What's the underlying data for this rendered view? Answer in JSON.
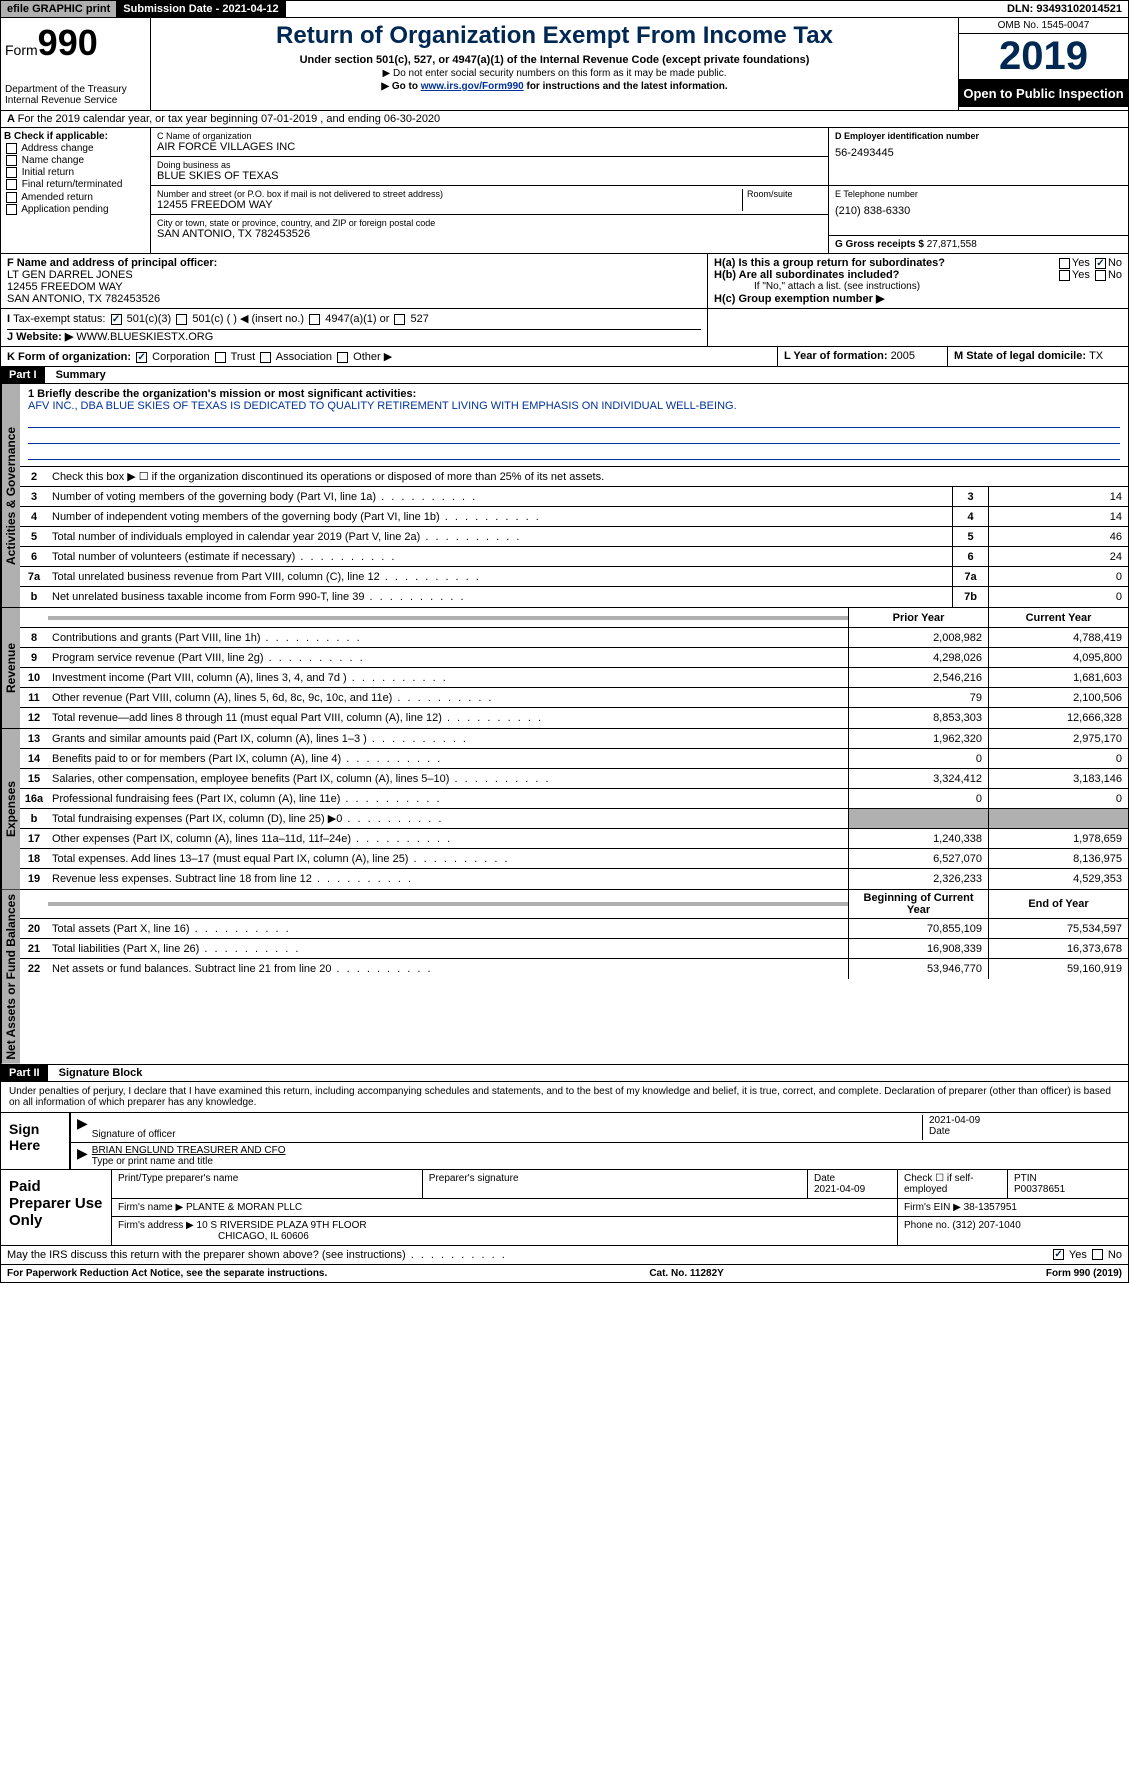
{
  "topbar": {
    "efile": "efile GRAPHIC print",
    "submission_label": "Submission Date - ",
    "submission_date": "2021-04-12",
    "dln_label": "DLN: ",
    "dln": "93493102014521"
  },
  "header": {
    "form_prefix": "Form",
    "form_number": "990",
    "dept": "Department of the Treasury\nInternal Revenue Service",
    "title": "Return of Organization Exempt From Income Tax",
    "subtitle": "Under section 501(c), 527, or 4947(a)(1) of the Internal Revenue Code (except private foundations)",
    "note1": "▶ Do not enter social security numbers on this form as it may be made public.",
    "note2_pre": "▶ Go to ",
    "note2_link": "www.irs.gov/Form990",
    "note2_post": " for instructions and the latest information.",
    "omb": "OMB No. 1545-0047",
    "year": "2019",
    "open_public": "Open to Public Inspection"
  },
  "row_a": "For the 2019 calendar year, or tax year beginning 07-01-2019   , and ending 06-30-2020",
  "box_b": {
    "title": "B Check if applicable:",
    "opts": [
      "Address change",
      "Name change",
      "Initial return",
      "Final return/terminated",
      "Amended return",
      "Application pending"
    ]
  },
  "box_c": {
    "name_lbl": "C Name of organization",
    "name": "AIR FORCE VILLAGES INC",
    "dba_lbl": "Doing business as",
    "dba": "BLUE SKIES OF TEXAS",
    "addr_lbl": "Number and street (or P.O. box if mail is not delivered to street address)",
    "room_lbl": "Room/suite",
    "addr": "12455 FREEDOM WAY",
    "city_lbl": "City or town, state or province, country, and ZIP or foreign postal code",
    "city": "SAN ANTONIO, TX  782453526"
  },
  "box_d": {
    "lbl": "D Employer identification number",
    "val": "56-2493445"
  },
  "box_e": {
    "lbl": "E Telephone number",
    "val": "(210) 838-6330"
  },
  "box_g": {
    "lbl": "G Gross receipts $ ",
    "val": "27,871,558"
  },
  "box_f": {
    "lbl": "F  Name and address of principal officer:",
    "name": "LT GEN DARREL JONES",
    "addr1": "12455 FREEDOM WAY",
    "addr2": "SAN ANTONIO, TX  782453526"
  },
  "box_h": {
    "a": "H(a)  Is this a group return for subordinates?",
    "b": "H(b)  Are all subordinates included?",
    "b_note": "If \"No,\" attach a list. (see instructions)",
    "c": "H(c)  Group exemption number ▶"
  },
  "tax_status": {
    "lbl": "Tax-exempt status:",
    "opt1": "501(c)(3)",
    "opt2": "501(c) (  ) ◀ (insert no.)",
    "opt3": "4947(a)(1) or",
    "opt4": "527"
  },
  "website": {
    "lbl": "J    Website: ▶",
    "val": "WWW.BLUESKIESTX.ORG"
  },
  "box_k": {
    "lbl": "K Form of organization:",
    "opts": [
      "Corporation",
      "Trust",
      "Association",
      "Other ▶"
    ]
  },
  "box_l": {
    "lbl": "L Year of formation: ",
    "val": "2005"
  },
  "box_m": {
    "lbl": "M State of legal domicile: ",
    "val": "TX"
  },
  "part1": {
    "title": "Part I",
    "name": "Summary",
    "l1_lbl": "1  Briefly describe the organization's mission or most significant activities:",
    "l1_val": "AFV INC., DBA BLUE SKIES OF TEXAS IS DEDICATED TO QUALITY RETIREMENT LIVING WITH EMPHASIS ON INDIVIDUAL WELL-BEING.",
    "l2": "Check this box ▶ ☐  if the organization discontinued its operations or disposed of more than 25% of its net assets.",
    "vlabel_gov": "Activities & Governance",
    "vlabel_rev": "Revenue",
    "vlabel_exp": "Expenses",
    "vlabel_net": "Net Assets or Fund Balances",
    "prior_year": "Prior Year",
    "current_year": "Current Year",
    "begin_year": "Beginning of Current Year",
    "end_year": "End of Year"
  },
  "lines_gov": [
    {
      "n": "3",
      "d": "Number of voting members of the governing body (Part VI, line 1a)",
      "box": "3",
      "v": "14"
    },
    {
      "n": "4",
      "d": "Number of independent voting members of the governing body (Part VI, line 1b)",
      "box": "4",
      "v": "14"
    },
    {
      "n": "5",
      "d": "Total number of individuals employed in calendar year 2019 (Part V, line 2a)",
      "box": "5",
      "v": "46"
    },
    {
      "n": "6",
      "d": "Total number of volunteers (estimate if necessary)",
      "box": "6",
      "v": "24"
    },
    {
      "n": "7a",
      "d": "Total unrelated business revenue from Part VIII, column (C), line 12",
      "box": "7a",
      "v": "0"
    },
    {
      "n": "b",
      "d": "Net unrelated business taxable income from Form 990-T, line 39",
      "box": "7b",
      "v": "0"
    }
  ],
  "lines_rev": [
    {
      "n": "8",
      "d": "Contributions and grants (Part VIII, line 1h)",
      "p": "2,008,982",
      "c": "4,788,419"
    },
    {
      "n": "9",
      "d": "Program service revenue (Part VIII, line 2g)",
      "p": "4,298,026",
      "c": "4,095,800"
    },
    {
      "n": "10",
      "d": "Investment income (Part VIII, column (A), lines 3, 4, and 7d )",
      "p": "2,546,216",
      "c": "1,681,603"
    },
    {
      "n": "11",
      "d": "Other revenue (Part VIII, column (A), lines 5, 6d, 8c, 9c, 10c, and 11e)",
      "p": "79",
      "c": "2,100,506"
    },
    {
      "n": "12",
      "d": "Total revenue—add lines 8 through 11 (must equal Part VIII, column (A), line 12)",
      "p": "8,853,303",
      "c": "12,666,328"
    }
  ],
  "lines_exp": [
    {
      "n": "13",
      "d": "Grants and similar amounts paid (Part IX, column (A), lines 1–3 )",
      "p": "1,962,320",
      "c": "2,975,170"
    },
    {
      "n": "14",
      "d": "Benefits paid to or for members (Part IX, column (A), line 4)",
      "p": "0",
      "c": "0"
    },
    {
      "n": "15",
      "d": "Salaries, other compensation, employee benefits (Part IX, column (A), lines 5–10)",
      "p": "3,324,412",
      "c": "3,183,146"
    },
    {
      "n": "16a",
      "d": "Professional fundraising fees (Part IX, column (A), line 11e)",
      "p": "0",
      "c": "0"
    },
    {
      "n": "b",
      "d": "Total fundraising expenses (Part IX, column (D), line 25) ▶0",
      "p": "",
      "c": "",
      "shaded": true
    },
    {
      "n": "17",
      "d": "Other expenses (Part IX, column (A), lines 11a–11d, 11f–24e)",
      "p": "1,240,338",
      "c": "1,978,659"
    },
    {
      "n": "18",
      "d": "Total expenses. Add lines 13–17 (must equal Part IX, column (A), line 25)",
      "p": "6,527,070",
      "c": "8,136,975"
    },
    {
      "n": "19",
      "d": "Revenue less expenses. Subtract line 18 from line 12",
      "p": "2,326,233",
      "c": "4,529,353"
    }
  ],
  "lines_net": [
    {
      "n": "20",
      "d": "Total assets (Part X, line 16)",
      "p": "70,855,109",
      "c": "75,534,597"
    },
    {
      "n": "21",
      "d": "Total liabilities (Part X, line 26)",
      "p": "16,908,339",
      "c": "16,373,678"
    },
    {
      "n": "22",
      "d": "Net assets or fund balances. Subtract line 21 from line 20",
      "p": "53,946,770",
      "c": "59,160,919"
    }
  ],
  "part2": {
    "title": "Part II",
    "name": "Signature Block"
  },
  "sig": {
    "intro": "Under penalties of perjury, I declare that I have examined this return, including accompanying schedules and statements, and to the best of my knowledge and belief, it is true, correct, and complete. Declaration of preparer (other than officer) is based on all information of which preparer has any knowledge.",
    "sign_here": "Sign Here",
    "sig_officer": "Signature of officer",
    "date": "2021-04-09",
    "date_lbl": "Date",
    "officer_name": "BRIAN ENGLUND  TREASURER AND CFO",
    "type_name": "Type or print name and title",
    "paid_prep": "Paid Preparer Use Only",
    "prep_name_lbl": "Print/Type preparer's name",
    "prep_sig_lbl": "Preparer's signature",
    "prep_date": "2021-04-09",
    "check_self": "Check ☐ if self-employed",
    "ptin_lbl": "PTIN",
    "ptin": "P00378651",
    "firm_name_lbl": "Firm's name    ▶",
    "firm_name": "PLANTE & MORAN PLLC",
    "firm_ein_lbl": "Firm's EIN ▶",
    "firm_ein": "38-1357951",
    "firm_addr_lbl": "Firm's address ▶",
    "firm_addr1": "10 S RIVERSIDE PLAZA 9TH FLOOR",
    "firm_addr2": "CHICAGO, IL  60606",
    "phone_lbl": "Phone no. ",
    "phone": "(312) 207-1040",
    "discuss": "May the IRS discuss this return with the preparer shown above? (see instructions)"
  },
  "footer": {
    "paperwork": "For Paperwork Reduction Act Notice, see the separate instructions.",
    "cat": "Cat. No. 11282Y",
    "form": "Form 990 (2019)"
  }
}
